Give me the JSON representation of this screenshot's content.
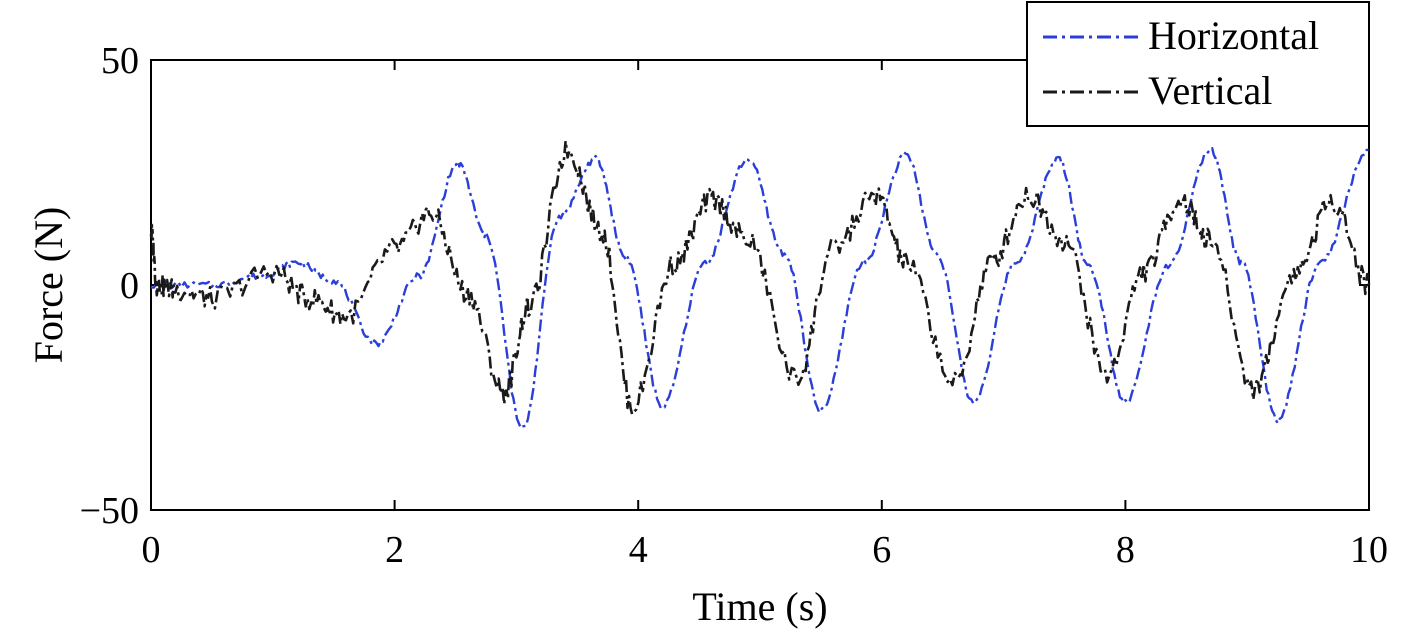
{
  "chart_data": {
    "type": "line",
    "title": "",
    "xlabel": "Time (s)",
    "ylabel": "Force (N)",
    "xlim": [
      0,
      10
    ],
    "ylim": [
      -50,
      50
    ],
    "xticks": [
      0,
      2,
      4,
      6,
      8,
      10
    ],
    "yticks": [
      -50,
      0,
      50
    ],
    "xtick_labels": [
      "0",
      "2",
      "4",
      "6",
      "8",
      "10"
    ],
    "ytick_labels": [
      "−50",
      "0",
      "50"
    ],
    "grid": false,
    "legend_position": "top-right",
    "series": [
      {
        "name": "Horizontal",
        "color": "#2b3fd8",
        "line_style": "dash-dot",
        "x": [
          0,
          0.5,
          0.9,
          1.2,
          1.5,
          1.85,
          2.2,
          2.52,
          2.75,
          3.05,
          3.35,
          3.65,
          3.9,
          4.2,
          4.55,
          4.9,
          5.2,
          5.5,
          5.85,
          6.2,
          6.45,
          6.75,
          7.1,
          7.45,
          7.7,
          8.0,
          8.35,
          8.7,
          8.95,
          9.25,
          9.6,
          10.0
        ],
        "y": [
          0,
          0,
          2,
          5,
          1,
          -13,
          2,
          27,
          11,
          -32,
          15,
          28,
          6,
          -27,
          5,
          28,
          7,
          -28,
          5,
          29,
          7,
          -26,
          5,
          28,
          4,
          -26,
          4,
          30,
          5,
          -30,
          5,
          30
        ]
      },
      {
        "name": "Vertical",
        "color": "#1a1a1a",
        "line_style": "dash-dot",
        "x": [
          0,
          0.05,
          0.2,
          0.5,
          1.0,
          1.3,
          1.6,
          2.0,
          2.3,
          2.6,
          2.9,
          3.1,
          3.42,
          3.7,
          3.95,
          4.3,
          4.6,
          4.9,
          5.3,
          5.6,
          5.95,
          6.2,
          6.6,
          6.9,
          7.2,
          7.5,
          7.85,
          8.15,
          8.45,
          8.7,
          9.05,
          9.4,
          9.7,
          10.0
        ],
        "y": [
          12,
          0,
          -1,
          -3,
          3,
          -3,
          -7,
          8,
          16,
          -2,
          -24,
          -5,
          30,
          12,
          -27,
          5,
          19,
          10,
          -21,
          8,
          20,
          5,
          -22,
          5,
          20,
          10,
          -20,
          3,
          19,
          10,
          -23,
          3,
          19,
          0
        ]
      }
    ]
  }
}
